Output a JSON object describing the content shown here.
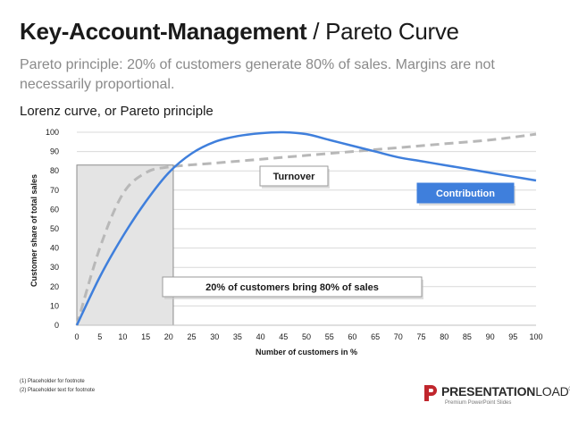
{
  "slide": {
    "title_bold": "Key-Account-Management",
    "title_rest": " / Pareto Curve",
    "subtitle": "Pareto principle: 20% of customers generate 80% of sales. Margins are not necessarily proportional.",
    "chart_heading": "Lorenz curve, or Pareto principle"
  },
  "footnotes": [
    "(1)  Placeholder for footnote",
    "(2)  Placeholder text for footnote"
  ],
  "logo": {
    "name_bold": "PRESENTATION",
    "name_rest": "LOAD",
    "registered": "®",
    "tagline": "Premium PowerPoint Slides",
    "color": "#c0262d"
  },
  "chart_data": {
    "type": "line",
    "title": "",
    "xlabel": "Number of customers in %",
    "ylabel": "Customer share of total sales",
    "xlim": [
      0,
      100
    ],
    "ylim": [
      0,
      100
    ],
    "x_ticks": [
      0,
      5,
      10,
      15,
      20,
      25,
      30,
      35,
      40,
      45,
      50,
      55,
      60,
      65,
      70,
      75,
      80,
      85,
      90,
      95,
      100
    ],
    "y_ticks": [
      0,
      10,
      20,
      30,
      40,
      50,
      60,
      70,
      80,
      90,
      100
    ],
    "grid": "horizontal",
    "series": [
      {
        "name": "Turnover",
        "style": "dashed",
        "color": "#b8b8b8",
        "x": [
          0,
          5,
          10,
          15,
          20,
          30,
          40,
          50,
          60,
          70,
          80,
          90,
          100
        ],
        "y": [
          0,
          40,
          68,
          79,
          82,
          84,
          86,
          88,
          90,
          92,
          94,
          96,
          99
        ]
      },
      {
        "name": "Contribution",
        "style": "solid",
        "color": "#3f7fdc",
        "x": [
          0,
          5,
          10,
          15,
          20,
          25,
          30,
          35,
          40,
          45,
          50,
          55,
          60,
          65,
          70,
          75,
          80,
          85,
          90,
          95,
          100
        ],
        "y": [
          0,
          25,
          46,
          64,
          79,
          89,
          95,
          98,
          99.5,
          100,
          99,
          96,
          93,
          90,
          87,
          85,
          83,
          81,
          79,
          77,
          75
        ]
      }
    ],
    "highlight_range_x": [
      0,
      21
    ],
    "highlight_range_y": [
      0,
      83
    ],
    "annotations": [
      {
        "text": "Turnover",
        "style": "box"
      },
      {
        "text": "Contribution",
        "style": "blue-box"
      },
      {
        "text": "20% of customers bring 80% of sales",
        "style": "box"
      }
    ]
  }
}
